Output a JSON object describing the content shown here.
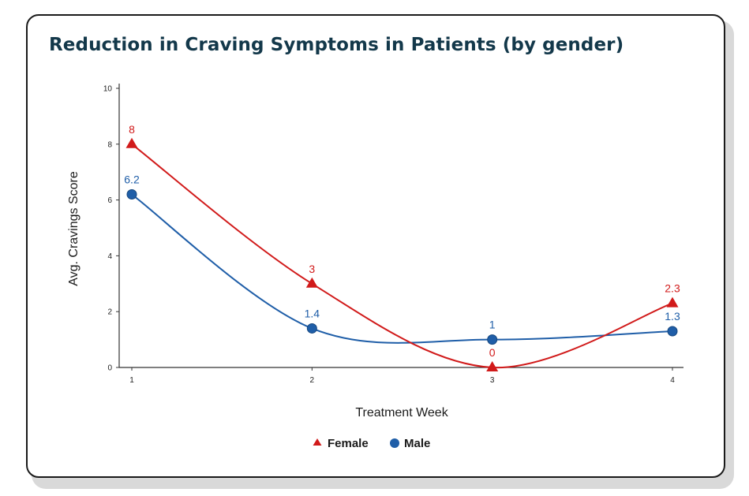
{
  "page": {
    "title": "Reduction in Craving Symptoms in Patients (by gender)"
  },
  "chart_data": {
    "type": "line",
    "title": "Reduction in Craving Symptoms in Patients (by gender)",
    "xlabel": "Treatment Week",
    "ylabel": "Avg. Cravings Score",
    "x": [
      1,
      2,
      3,
      4
    ],
    "x_tick_labels": [
      "1",
      "2",
      "3",
      "4"
    ],
    "ylim": [
      0,
      10
    ],
    "y_ticks": [
      0,
      2,
      4,
      6,
      8,
      10
    ],
    "grid": false,
    "legend_position": "bottom-center",
    "series": [
      {
        "name": "Female",
        "values": [
          8,
          3,
          0,
          2.3
        ],
        "labels": [
          "8",
          "3",
          "0",
          "2.3"
        ],
        "color": "#d11a1a",
        "marker": "triangle"
      },
      {
        "name": "Male",
        "values": [
          6.2,
          1.4,
          1,
          1.3
        ],
        "labels": [
          "6.2",
          "1.4",
          "1",
          "1.3"
        ],
        "color": "#1f5ea8",
        "marker": "circle"
      }
    ]
  }
}
